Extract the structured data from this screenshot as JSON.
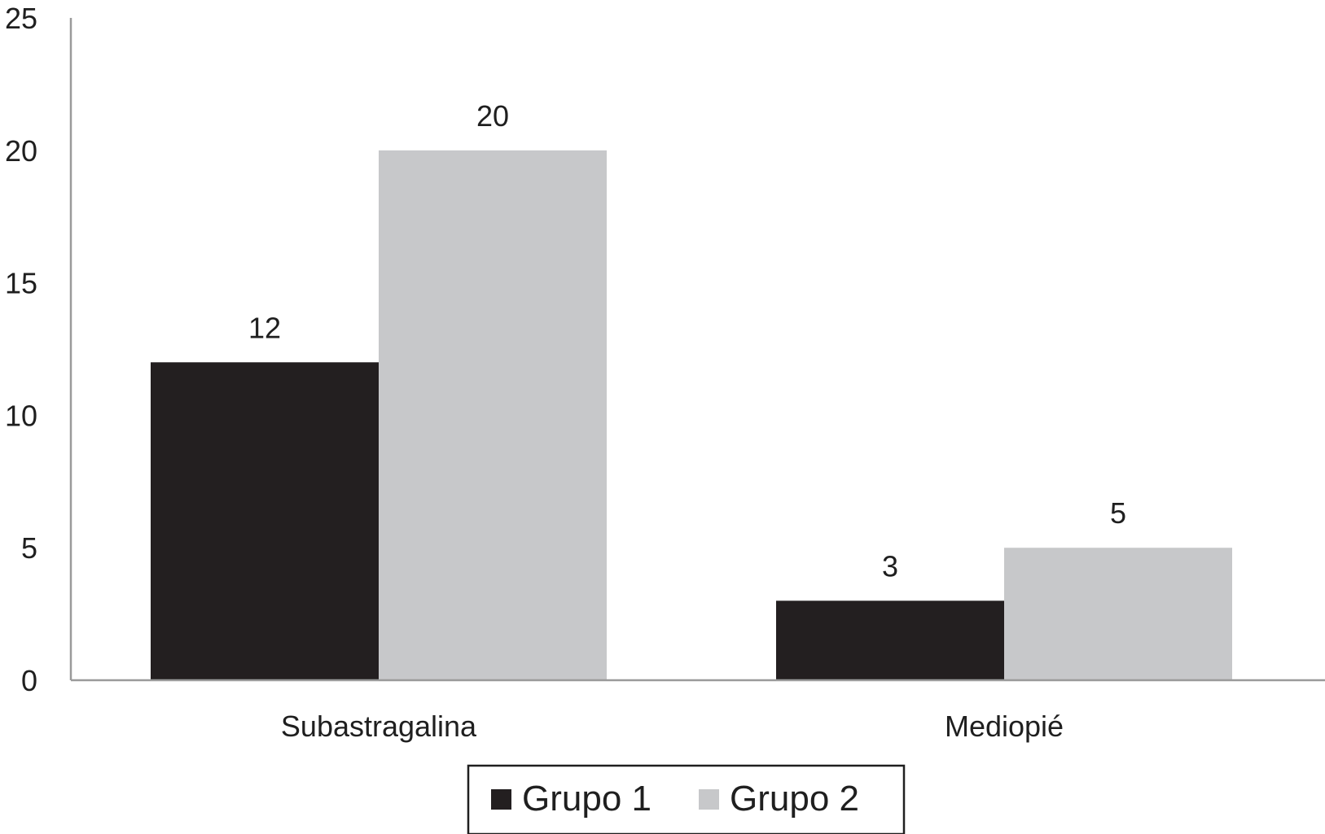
{
  "chart_data": {
    "type": "bar",
    "title": "",
    "xlabel": "",
    "ylabel": "",
    "categories": [
      "Subastragalina",
      "Mediopié"
    ],
    "series": [
      {
        "name": "Grupo 1",
        "values": [
          12,
          3
        ],
        "color": "#231f20"
      },
      {
        "name": "Grupo 2",
        "values": [
          20,
          5
        ],
        "color": "#c7c8ca"
      }
    ],
    "ylim": [
      0,
      25
    ],
    "yticks": [
      0,
      5,
      10,
      15,
      20,
      25
    ],
    "data_labels": true,
    "grid": false,
    "legend": "bottom-center"
  }
}
